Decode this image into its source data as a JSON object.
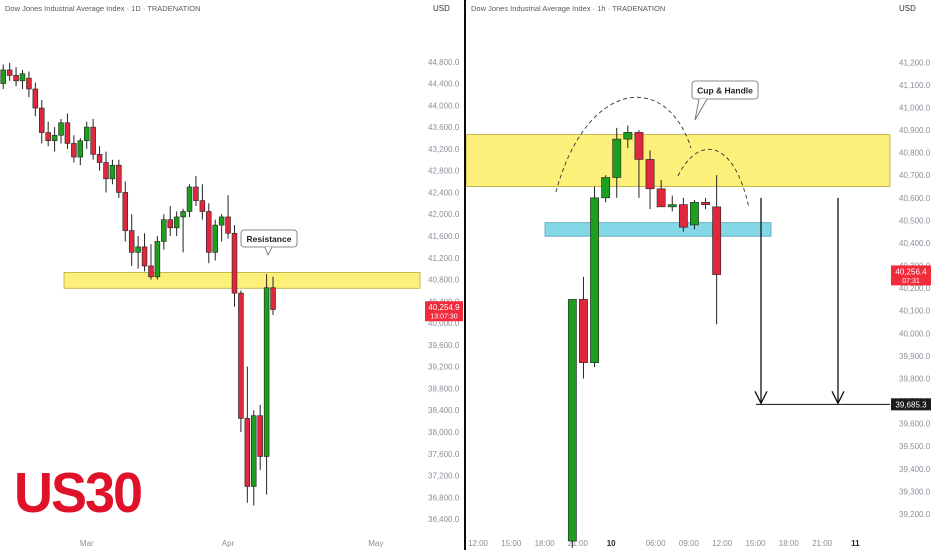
{
  "colors": {
    "up": "#1e9e1e",
    "down": "#e0283c",
    "resistance_zone": "#fdf07a",
    "support_zone": "#83d7e6",
    "price_badge": "#f22b3c",
    "grid_text": "#8a8f98"
  },
  "brand_text": "US30",
  "chart_data": [
    {
      "type": "candlestick",
      "title": "Dow Jones Industrial Average Index · 1D · TRADENATION",
      "currency": "USD",
      "ylim": [
        36200,
        45200
      ],
      "y_ticks": [
        "44,800.0",
        "44,400.0",
        "44,000.0",
        "43,600.0",
        "43,200.0",
        "42,800.0",
        "42,400.0",
        "42,000.0",
        "41,600.0",
        "41,200.0",
        "40,800.0",
        "40,400.0",
        "40,000.0",
        "39,600.0",
        "39,200.0",
        "38,800.0",
        "38,400.0",
        "38,000.0",
        "37,600.0",
        "37,200.0",
        "36,800.0",
        "36,400.0"
      ],
      "y_tick_values": [
        44800,
        44400,
        44000,
        43600,
        43200,
        42800,
        42400,
        42000,
        41600,
        41200,
        40800,
        40400,
        40000,
        39600,
        39200,
        38800,
        38400,
        38000,
        37600,
        37200,
        36800,
        36400
      ],
      "x_ticks": [
        {
          "label": "Mar",
          "index": 13
        },
        {
          "label": "Apr",
          "index": 35
        },
        {
          "label": "May",
          "index": 58
        }
      ],
      "n_slots": 66,
      "candles": [
        {
          "o": 44400,
          "h": 44750,
          "l": 44300,
          "c": 44650
        },
        {
          "o": 44650,
          "h": 44780,
          "l": 44450,
          "c": 44550
        },
        {
          "o": 44550,
          "h": 44700,
          "l": 44350,
          "c": 44450
        },
        {
          "o": 44450,
          "h": 44650,
          "l": 44300,
          "c": 44580
        },
        {
          "o": 44500,
          "h": 44620,
          "l": 44150,
          "c": 44300
        },
        {
          "o": 44300,
          "h": 44420,
          "l": 43800,
          "c": 43950
        },
        {
          "o": 43950,
          "h": 44100,
          "l": 43300,
          "c": 43500
        },
        {
          "o": 43500,
          "h": 43700,
          "l": 43250,
          "c": 43350
        },
        {
          "o": 43350,
          "h": 43600,
          "l": 43150,
          "c": 43450
        },
        {
          "o": 43450,
          "h": 43750,
          "l": 43300,
          "c": 43680
        },
        {
          "o": 43680,
          "h": 43850,
          "l": 43200,
          "c": 43300
        },
        {
          "o": 43300,
          "h": 43450,
          "l": 42950,
          "c": 43050
        },
        {
          "o": 43050,
          "h": 43400,
          "l": 42900,
          "c": 43350
        },
        {
          "o": 43350,
          "h": 43700,
          "l": 43200,
          "c": 43600
        },
        {
          "o": 43600,
          "h": 43750,
          "l": 43000,
          "c": 43100
        },
        {
          "o": 43100,
          "h": 43250,
          "l": 42800,
          "c": 42950
        },
        {
          "o": 42950,
          "h": 43150,
          "l": 42400,
          "c": 42650
        },
        {
          "o": 42650,
          "h": 43000,
          "l": 42550,
          "c": 42900
        },
        {
          "o": 42900,
          "h": 43000,
          "l": 42300,
          "c": 42400
        },
        {
          "o": 42400,
          "h": 42600,
          "l": 41500,
          "c": 41700
        },
        {
          "o": 41700,
          "h": 42000,
          "l": 41050,
          "c": 41300
        },
        {
          "o": 41300,
          "h": 41600,
          "l": 41000,
          "c": 41400
        },
        {
          "o": 41400,
          "h": 41650,
          "l": 40950,
          "c": 41050
        },
        {
          "o": 41050,
          "h": 41450,
          "l": 40800,
          "c": 40850
        },
        {
          "o": 40850,
          "h": 41600,
          "l": 40800,
          "c": 41500
        },
        {
          "o": 41500,
          "h": 42000,
          "l": 41350,
          "c": 41900
        },
        {
          "o": 41900,
          "h": 42150,
          "l": 41600,
          "c": 41750
        },
        {
          "o": 41750,
          "h": 42050,
          "l": 41600,
          "c": 41950
        },
        {
          "o": 41950,
          "h": 42100,
          "l": 41300,
          "c": 42050
        },
        {
          "o": 42050,
          "h": 42550,
          "l": 41950,
          "c": 42500
        },
        {
          "o": 42500,
          "h": 42700,
          "l": 42150,
          "c": 42250
        },
        {
          "o": 42250,
          "h": 42550,
          "l": 41900,
          "c": 42050
        },
        {
          "o": 42050,
          "h": 42200,
          "l": 41100,
          "c": 41300
        },
        {
          "o": 41300,
          "h": 41900,
          "l": 41150,
          "c": 41800
        },
        {
          "o": 41800,
          "h": 42000,
          "l": 41500,
          "c": 41950
        },
        {
          "o": 41950,
          "h": 42350,
          "l": 41550,
          "c": 41650
        },
        {
          "o": 41650,
          "h": 41800,
          "l": 40300,
          "c": 40550
        },
        {
          "o": 40550,
          "h": 40600,
          "l": 38000,
          "c": 38250
        },
        {
          "o": 38250,
          "h": 39200,
          "l": 36700,
          "c": 37000
        },
        {
          "o": 37000,
          "h": 38400,
          "l": 36650,
          "c": 38300
        },
        {
          "o": 38300,
          "h": 38500,
          "l": 37300,
          "c": 37550
        },
        {
          "o": 37550,
          "h": 40900,
          "l": 36850,
          "c": 40650
        },
        {
          "o": 40650,
          "h": 40850,
          "l": 40150,
          "c": 40250
        }
      ],
      "zones": [
        {
          "from": 40640,
          "to": 40930,
          "kind": "resistance"
        }
      ],
      "annotations": {
        "resistance_label": "Resistance"
      },
      "last_price": {
        "value": 40254.9,
        "label": "40,254.9",
        "countdown": "13:07:30"
      }
    },
    {
      "type": "candlestick",
      "title": "Dow Jones Industrial Average Index · 1h · TRADENATION",
      "currency": "USD",
      "ylim": [
        39120,
        41330
      ],
      "y_ticks": [
        "41,200.0",
        "41,100.0",
        "41,000.0",
        "40,900.0",
        "40,800.0",
        "40,700.0",
        "40,600.0",
        "40,500.0",
        "40,400.0",
        "40,300.0",
        "40,200.0",
        "40,100.0",
        "40,000.0",
        "39,900.0",
        "39,800.0",
        "39,700.0",
        "39,600.0",
        "39,500.0",
        "39,400.0",
        "39,300.0",
        "39,200.0"
      ],
      "y_tick_values": [
        41200,
        41100,
        41000,
        40900,
        40800,
        40700,
        40600,
        40500,
        40400,
        40300,
        40200,
        40100,
        40000,
        39900,
        39800,
        39700,
        39600,
        39500,
        39400,
        39300,
        39200
      ],
      "x_ticks": [
        {
          "label": "12:00",
          "slot": 0
        },
        {
          "label": "15:00",
          "slot": 3
        },
        {
          "label": "18:00",
          "slot": 6
        },
        {
          "label": "21:00",
          "slot": 9
        },
        {
          "label": "10",
          "slot": 12
        },
        {
          "label": "06:00",
          "slot": 16
        },
        {
          "label": "09:00",
          "slot": 19
        },
        {
          "label": "12:00",
          "slot": 22
        },
        {
          "label": "15:00",
          "slot": 25
        },
        {
          "label": "18:00",
          "slot": 28
        },
        {
          "label": "21:00",
          "slot": 31
        },
        {
          "label": "11",
          "slot": 34
        }
      ],
      "first_candle_slot": 8,
      "candles": [
        {
          "o": 39080,
          "h": 40150,
          "l": 39050,
          "c": 40150
        },
        {
          "o": 40150,
          "h": 40250,
          "l": 39800,
          "c": 39870
        },
        {
          "o": 39870,
          "h": 40650,
          "l": 39850,
          "c": 40600
        },
        {
          "o": 40600,
          "h": 40700,
          "l": 40580,
          "c": 40690
        },
        {
          "o": 40690,
          "h": 40910,
          "l": 40600,
          "c": 40860
        },
        {
          "o": 40860,
          "h": 40920,
          "l": 40820,
          "c": 40890
        },
        {
          "o": 40890,
          "h": 40900,
          "l": 40600,
          "c": 40770
        },
        {
          "o": 40770,
          "h": 40810,
          "l": 40550,
          "c": 40640
        },
        {
          "o": 40640,
          "h": 40680,
          "l": 40560,
          "c": 40560
        },
        {
          "o": 40560,
          "h": 40610,
          "l": 40540,
          "c": 40570
        },
        {
          "o": 40570,
          "h": 40600,
          "l": 40450,
          "c": 40470
        },
        {
          "o": 40480,
          "h": 40590,
          "l": 40460,
          "c": 40580
        },
        {
          "o": 40580,
          "h": 40600,
          "l": 40550,
          "c": 40570
        },
        {
          "o": 40560,
          "h": 40700,
          "l": 40040,
          "c": 40260
        }
      ],
      "zones": [
        {
          "from": 40650,
          "to": 40880,
          "kind": "resistance"
        },
        {
          "from": 40430,
          "to": 40490,
          "kind": "support"
        }
      ],
      "annotations": {
        "pattern_label": "Cup & Handle"
      },
      "projection_arrows": [
        {
          "from": 40600,
          "to": 39690
        },
        {
          "from": 40600,
          "to": 39690
        }
      ],
      "target_price": {
        "value": 39685.3,
        "label": "39,685.3"
      },
      "last_price": {
        "value": 40256.4,
        "label": "40,256.4",
        "countdown": "07:31"
      }
    }
  ]
}
